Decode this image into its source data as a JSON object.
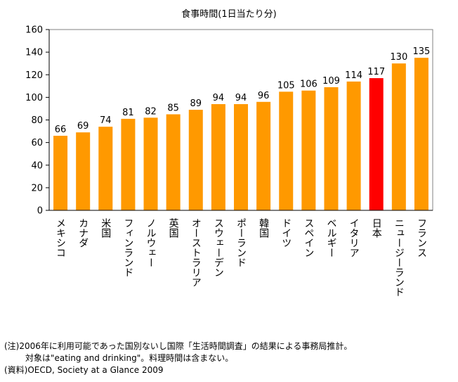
{
  "chart_data": {
    "type": "bar",
    "title": "食事時間(1日当たり分)",
    "xlabel": "",
    "ylabel": "",
    "categories": [
      "メキシコ",
      "カナダ",
      "米国",
      "フィンランド",
      "ノルウェー",
      "英国",
      "オーストラリア",
      "スウェーデン",
      "ポーランド",
      "韓国",
      "ドイツ",
      "スペイン",
      "ベルギー",
      "イタリア",
      "日本",
      "ニュージーランド",
      "フランス"
    ],
    "values": [
      66,
      69,
      74,
      81,
      82,
      85,
      89,
      94,
      94,
      96,
      105,
      106,
      109,
      114,
      117,
      130,
      135
    ],
    "ylim": [
      0,
      160
    ],
    "yticks": [
      0,
      20,
      40,
      60,
      80,
      100,
      120,
      140,
      160
    ],
    "grid": false,
    "legend": "none",
    "bar_color": "#ff9900",
    "highlight_color": "#ff0000",
    "highlight_category": "日本"
  },
  "notes": [
    "(注)2006年に利用可能であった国別ないし国際「生活時間調査」の結果による事務局推計。",
    "対象は\"eating and drinking\"。料理時間は含まない。",
    "(資料)OECD, Society at a Glance 2009"
  ]
}
